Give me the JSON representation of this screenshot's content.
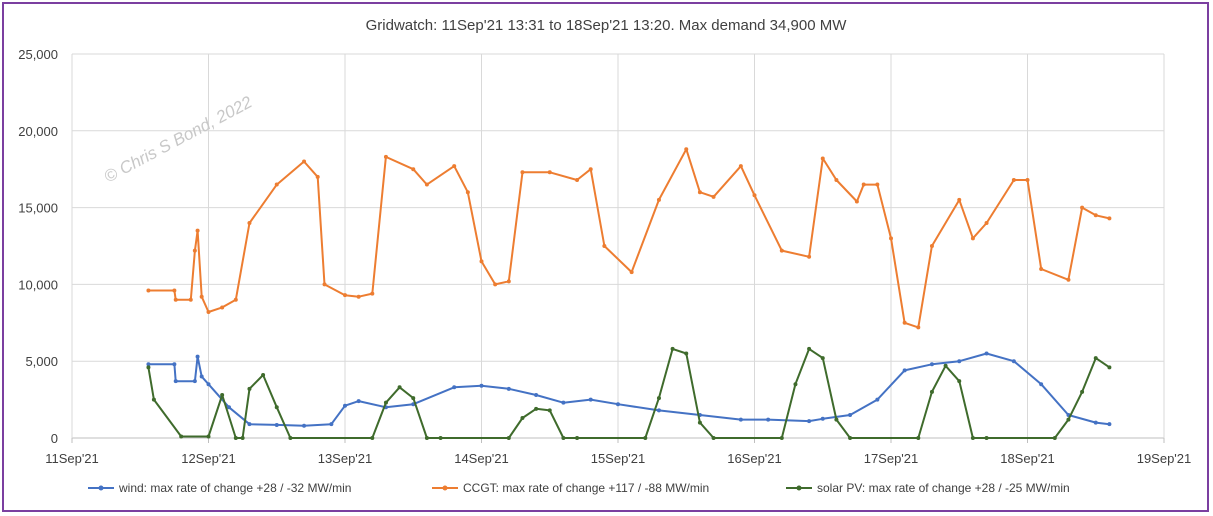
{
  "chart_data": {
    "type": "line",
    "title": "Gridwatch:  11Sep'21 13:31  to 18Sep'21 13:20.   Max demand 34,900 MW",
    "xlabel": "",
    "ylabel": "",
    "ylim": [
      0,
      25000
    ],
    "yticks": [
      0,
      5000,
      10000,
      15000,
      20000,
      25000
    ],
    "ytick_labels": [
      "0",
      "5,000",
      "10,000",
      "15,000",
      "20,000",
      "25,000"
    ],
    "xlim": [
      0,
      8
    ],
    "x_unit": "days after 11Sep'21 00:00",
    "xtick_labels": [
      "11Sep'21",
      "12Sep'21",
      "13Sep'21",
      "14Sep'21",
      "15Sep'21",
      "16Sep'21",
      "17Sep'21",
      "18Sep'21",
      "19Sep'21"
    ],
    "grid": true,
    "legend_position": "bottom",
    "watermark": "© Chris S Bond, 2022",
    "series": [
      {
        "name": "wind: max rate of change +28 / -32 MW/min",
        "color": "#4472c4",
        "x": [
          0.56,
          0.75,
          0.76,
          0.9,
          0.92,
          0.95,
          1.0,
          1.15,
          1.3,
          1.5,
          1.7,
          1.9,
          2.0,
          2.1,
          2.3,
          2.5,
          2.8,
          3.0,
          3.2,
          3.4,
          3.6,
          3.8,
          4.0,
          4.3,
          4.6,
          4.9,
          5.1,
          5.4,
          5.5,
          5.7,
          5.9,
          6.1,
          6.3,
          6.5,
          6.7,
          6.9,
          7.1,
          7.3,
          7.5,
          7.6
        ],
        "y": [
          4800,
          4800,
          3700,
          3700,
          5300,
          4000,
          3500,
          2000,
          900,
          850,
          800,
          900,
          2100,
          2400,
          2000,
          2200,
          3300,
          3400,
          3200,
          2800,
          2300,
          2500,
          2200,
          1800,
          1500,
          1200,
          1200,
          1100,
          1250,
          1500,
          2500,
          4400,
          4800,
          5000,
          5500,
          5000,
          3500,
          1500,
          1000,
          900
        ]
      },
      {
        "name": "CCGT: max rate of change +117 / -88 MW/min",
        "color": "#ed7d31",
        "x": [
          0.56,
          0.75,
          0.76,
          0.87,
          0.9,
          0.92,
          0.95,
          1.0,
          1.1,
          1.2,
          1.3,
          1.5,
          1.7,
          1.8,
          1.85,
          2.0,
          2.1,
          2.2,
          2.3,
          2.5,
          2.6,
          2.8,
          2.9,
          3.0,
          3.1,
          3.2,
          3.3,
          3.5,
          3.7,
          3.8,
          3.9,
          4.1,
          4.3,
          4.5,
          4.6,
          4.7,
          4.9,
          5.0,
          5.2,
          5.4,
          5.5,
          5.6,
          5.75,
          5.8,
          5.9,
          6.0,
          6.1,
          6.2,
          6.3,
          6.5,
          6.6,
          6.7,
          6.9,
          7.0,
          7.1,
          7.3,
          7.4,
          7.5,
          7.6
        ],
        "y": [
          9600,
          9600,
          9000,
          9000,
          12200,
          13500,
          9200,
          8200,
          8500,
          9000,
          14000,
          16500,
          18000,
          17000,
          10000,
          9300,
          9200,
          9400,
          18300,
          17500,
          16500,
          17700,
          16000,
          11500,
          10000,
          10200,
          17300,
          17300,
          16800,
          17500,
          12500,
          10800,
          15500,
          18800,
          16000,
          15700,
          17700,
          15800,
          12200,
          11800,
          18200,
          16800,
          15400,
          16500,
          16500,
          13000,
          7500,
          7200,
          12500,
          15500,
          13000,
          14000,
          16800,
          16800,
          11000,
          10300,
          15000,
          14500,
          14300
        ]
      },
      {
        "name": "solar PV: max rate of change +28 / -25 MW/min",
        "color": "#3f6b2c",
        "x": [
          0.56,
          0.6,
          0.8,
          1.0,
          1.1,
          1.2,
          1.25,
          1.3,
          1.4,
          1.5,
          1.6,
          2.2,
          2.3,
          2.4,
          2.5,
          2.6,
          2.7,
          3.2,
          3.3,
          3.4,
          3.5,
          3.6,
          3.7,
          4.2,
          4.3,
          4.4,
          4.5,
          4.6,
          4.7,
          5.2,
          5.3,
          5.4,
          5.5,
          5.6,
          5.7,
          6.2,
          6.3,
          6.4,
          6.5,
          6.6,
          6.7,
          7.2,
          7.3,
          7.4,
          7.5,
          7.6
        ],
        "y": [
          4600,
          2500,
          100,
          100,
          2800,
          0,
          0,
          3200,
          4100,
          2000,
          0,
          0,
          2300,
          3300,
          2600,
          0,
          0,
          0,
          1300,
          1900,
          1800,
          0,
          0,
          0,
          2600,
          5800,
          5500,
          1000,
          0,
          0,
          3500,
          5800,
          5200,
          1200,
          0,
          0,
          3000,
          4700,
          3700,
          0,
          0,
          0,
          1200,
          3000,
          5200,
          4600
        ]
      }
    ]
  }
}
